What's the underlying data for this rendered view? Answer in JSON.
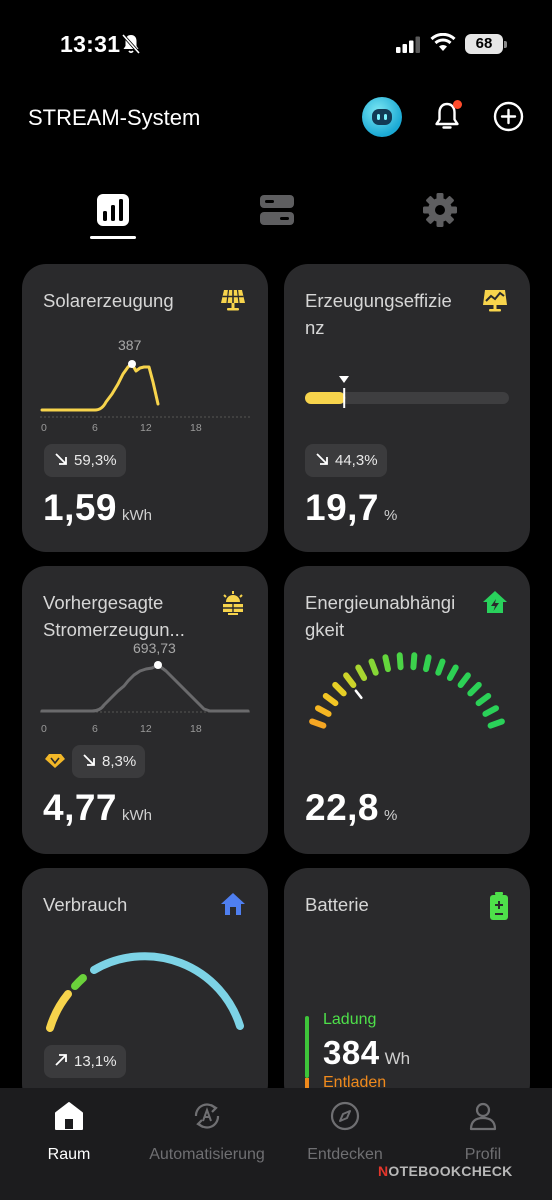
{
  "status_bar": {
    "time": "13:31",
    "battery": "68"
  },
  "header": {
    "title": "STREAM-System"
  },
  "tabs": [
    {
      "icon": "bar-chart-icon",
      "active": true
    },
    {
      "icon": "server-icon",
      "active": false
    },
    {
      "icon": "gear-icon",
      "active": false
    }
  ],
  "cards": {
    "solar": {
      "title": "Solarerzeugung",
      "icon": "solar-panel-icon",
      "peak_label": "387",
      "x_ticks": [
        "0",
        "6",
        "12",
        "18"
      ],
      "change": "59,3%",
      "change_direction": "down",
      "value": "1,59",
      "unit": "kWh",
      "accent": "#f7d44c"
    },
    "efficiency": {
      "title": "Erzeugungseffizie nz",
      "title_line1": "Erzeugungseffizie",
      "title_line2": "nz",
      "icon": "efficiency-chart-icon",
      "bar_fraction": 0.197,
      "change": "44,3%",
      "change_direction": "down",
      "value": "19,7",
      "unit": "%",
      "accent": "#f7d44c"
    },
    "forecast": {
      "title_line1": "Vorhergesagte",
      "title_line2": "Stromerzeugun...",
      "icon": "sun-forecast-icon",
      "peak_label": "693,73",
      "x_ticks": [
        "0",
        "6",
        "12",
        "18"
      ],
      "change": "8,3%",
      "change_direction": "down",
      "premium_icon": "diamond-icon",
      "value": "4,77",
      "unit": "kWh",
      "accent": "#f7d44c"
    },
    "independence": {
      "title_line1": "Energieunabhängi",
      "title_line2": "gkeit",
      "icon": "house-energy-icon",
      "value": "22,8",
      "unit": "%",
      "gauge_fraction": 0.228,
      "accent": "#29d15c"
    },
    "consumption": {
      "title": "Verbrauch",
      "icon": "house-icon",
      "change": "13,1%",
      "change_direction": "up",
      "accent": "#4f7ff0"
    },
    "battery": {
      "title": "Batterie",
      "icon": "battery-icon",
      "charge_label": "Ladung",
      "charge_value": "384",
      "charge_unit": "Wh",
      "discharge_label": "Entladen",
      "accent": "#4ee04a"
    }
  },
  "bottom_nav": [
    {
      "label": "Raum",
      "icon": "home-icon",
      "active": true
    },
    {
      "label": "Automatisierung",
      "icon": "automation-icon",
      "active": false
    },
    {
      "label": "Entdecken",
      "icon": "compass-icon",
      "active": false
    },
    {
      "label": "Profil",
      "icon": "profile-icon",
      "active": false
    }
  ],
  "watermark": {
    "brand_letter": "N",
    "brand_rest": "OTEBOOKCHECK"
  }
}
